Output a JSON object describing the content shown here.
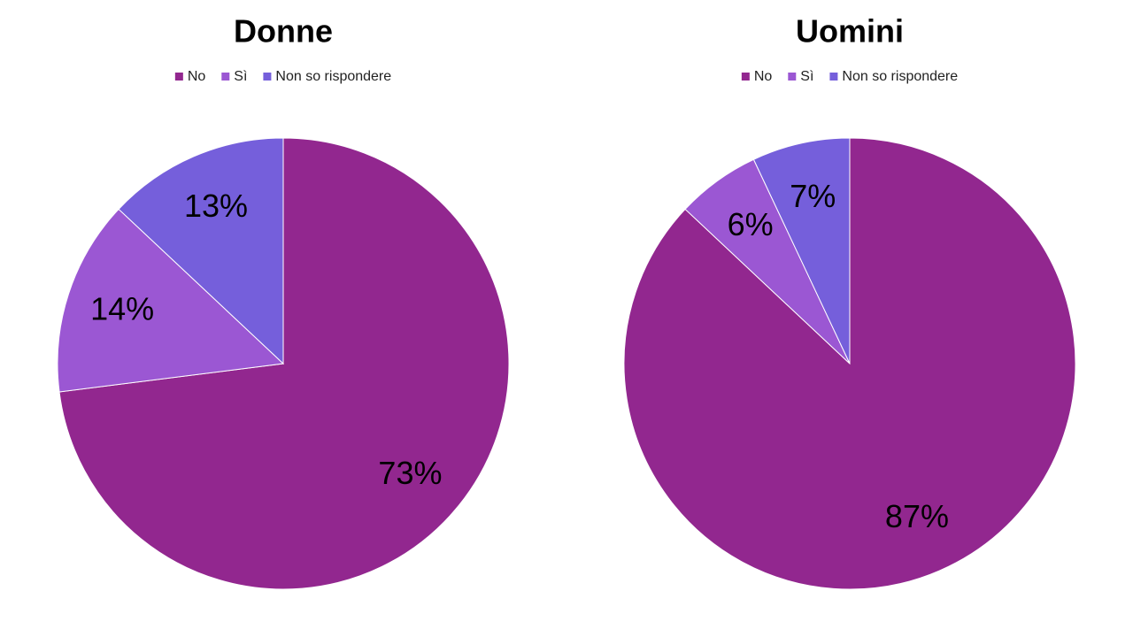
{
  "chart_data": [
    {
      "type": "pie",
      "title": "Donne",
      "categories": [
        "No",
        "Sì",
        "Non so rispondere"
      ],
      "values": [
        73,
        14,
        13
      ],
      "value_labels": [
        "73%",
        "14%",
        "13%"
      ],
      "colors": [
        "#92278f",
        "#9b57d3",
        "#755fdb"
      ]
    },
    {
      "type": "pie",
      "title": "Uomini",
      "categories": [
        "No",
        "Sì",
        "Non so rispondere"
      ],
      "values": [
        87,
        6,
        7
      ],
      "value_labels": [
        "87%",
        "6%",
        "7%"
      ],
      "colors": [
        "#92278f",
        "#9b57d3",
        "#755fdb"
      ]
    }
  ]
}
